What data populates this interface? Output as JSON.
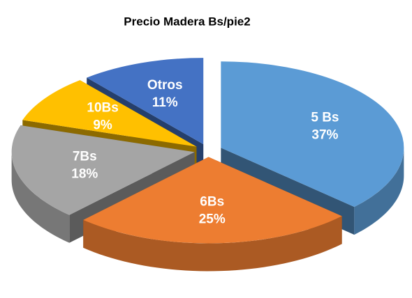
{
  "chart_data": {
    "type": "pie",
    "title": "Precio Madera Bs/pie2",
    "categories": [
      "5 Bs",
      "6Bs",
      "7Bs",
      "10Bs",
      "Otros"
    ],
    "values": [
      37,
      25,
      18,
      9,
      11
    ],
    "value_labels": [
      "37%",
      "25%",
      "18%",
      "9%",
      "11%"
    ],
    "colors": [
      "#5b9bd5",
      "#ed7d31",
      "#a5a5a5",
      "#ffc000",
      "#4472c4"
    ]
  }
}
